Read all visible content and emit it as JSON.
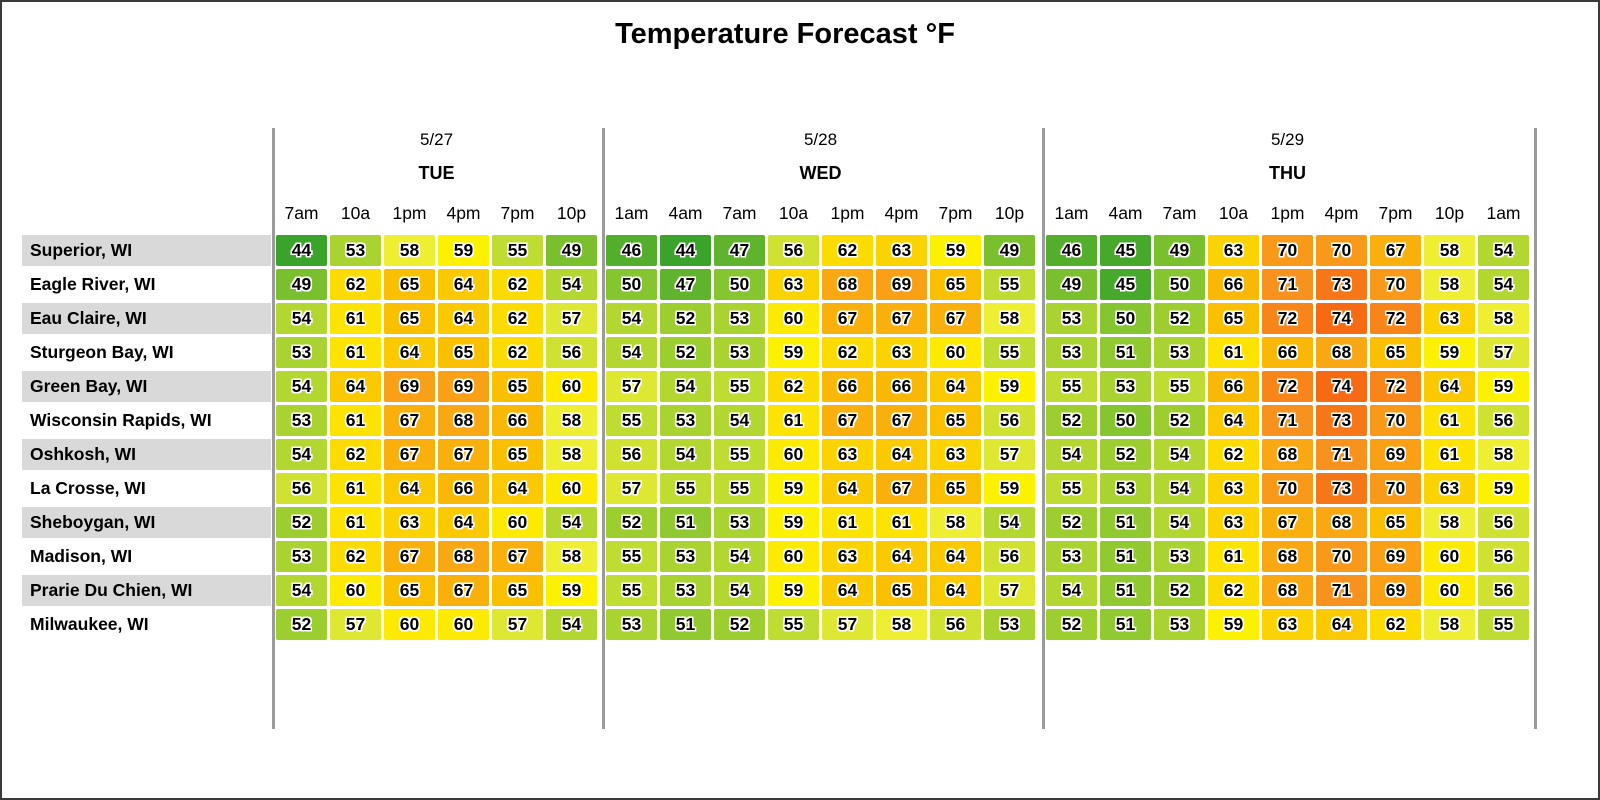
{
  "page": {
    "title": "Temperature Forecast °F"
  },
  "chart_data": {
    "type": "heatmap",
    "title": "Temperature Forecast °F",
    "unit": "°F",
    "value_range": [
      44,
      74
    ],
    "legend": "none",
    "grid": "off",
    "day_groups": [
      {
        "date": "5/27",
        "day": "TUE",
        "times": [
          "7am",
          "10a",
          "1pm",
          "4pm",
          "7pm",
          "10p"
        ]
      },
      {
        "date": "5/28",
        "day": "WED",
        "times": [
          "1am",
          "4am",
          "7am",
          "10a",
          "1pm",
          "4pm",
          "7pm",
          "10p"
        ]
      },
      {
        "date": "5/29",
        "day": "THU",
        "times": [
          "1am",
          "4am",
          "7am",
          "10a",
          "1pm",
          "4pm",
          "7pm",
          "10p",
          "1am"
        ]
      }
    ],
    "rows": [
      {
        "city": "Superior, WI",
        "values": [
          [
            44,
            53,
            58,
            59,
            55,
            49
          ],
          [
            46,
            44,
            47,
            56,
            62,
            63,
            59,
            49
          ],
          [
            46,
            45,
            49,
            63,
            70,
            70,
            67,
            58,
            54
          ]
        ]
      },
      {
        "city": "Eagle River, WI",
        "values": [
          [
            49,
            62,
            65,
            64,
            62,
            54
          ],
          [
            50,
            47,
            50,
            63,
            68,
            69,
            65,
            55
          ],
          [
            49,
            45,
            50,
            66,
            71,
            73,
            70,
            58,
            54
          ]
        ]
      },
      {
        "city": "Eau Claire, WI",
        "values": [
          [
            54,
            61,
            65,
            64,
            62,
            57
          ],
          [
            54,
            52,
            53,
            60,
            67,
            67,
            67,
            58
          ],
          [
            53,
            50,
            52,
            65,
            72,
            74,
            72,
            63,
            58
          ]
        ]
      },
      {
        "city": "Sturgeon Bay, WI",
        "values": [
          [
            53,
            61,
            64,
            65,
            62,
            56
          ],
          [
            54,
            52,
            53,
            59,
            62,
            63,
            60,
            55
          ],
          [
            53,
            51,
            53,
            61,
            66,
            68,
            65,
            59,
            57
          ]
        ]
      },
      {
        "city": "Green Bay, WI",
        "values": [
          [
            54,
            64,
            69,
            69,
            65,
            60
          ],
          [
            57,
            54,
            55,
            62,
            66,
            66,
            64,
            59
          ],
          [
            55,
            53,
            55,
            66,
            72,
            74,
            72,
            64,
            59
          ]
        ]
      },
      {
        "city": "Wisconsin Rapids, WI",
        "values": [
          [
            53,
            61,
            67,
            68,
            66,
            58
          ],
          [
            55,
            53,
            54,
            61,
            67,
            67,
            65,
            56
          ],
          [
            52,
            50,
            52,
            64,
            71,
            73,
            70,
            61,
            56
          ]
        ]
      },
      {
        "city": "Oshkosh, WI",
        "values": [
          [
            54,
            62,
            67,
            67,
            65,
            58
          ],
          [
            56,
            54,
            55,
            60,
            63,
            64,
            63,
            57
          ],
          [
            54,
            52,
            54,
            62,
            68,
            71,
            69,
            61,
            58
          ]
        ]
      },
      {
        "city": "La Crosse, WI",
        "values": [
          [
            56,
            61,
            64,
            66,
            64,
            60
          ],
          [
            57,
            55,
            55,
            59,
            64,
            67,
            65,
            59
          ],
          [
            55,
            53,
            54,
            63,
            70,
            73,
            70,
            63,
            59
          ]
        ]
      },
      {
        "city": "Sheboygan, WI",
        "values": [
          [
            52,
            61,
            63,
            64,
            60,
            54
          ],
          [
            52,
            51,
            53,
            59,
            61,
            61,
            58,
            54
          ],
          [
            52,
            51,
            54,
            63,
            67,
            68,
            65,
            58,
            56
          ]
        ]
      },
      {
        "city": "Madison, WI",
        "values": [
          [
            53,
            62,
            67,
            68,
            67,
            58
          ],
          [
            55,
            53,
            54,
            60,
            63,
            64,
            64,
            56
          ],
          [
            53,
            51,
            53,
            61,
            68,
            70,
            69,
            60,
            56
          ]
        ]
      },
      {
        "city": "Prarie Du Chien, WI",
        "values": [
          [
            54,
            60,
            65,
            67,
            65,
            59
          ],
          [
            55,
            53,
            54,
            59,
            64,
            65,
            64,
            57
          ],
          [
            54,
            51,
            52,
            62,
            68,
            71,
            69,
            60,
            56
          ]
        ]
      },
      {
        "city": "Milwaukee, WI",
        "values": [
          [
            52,
            57,
            60,
            60,
            57,
            54
          ],
          [
            53,
            51,
            52,
            55,
            57,
            58,
            56,
            53
          ],
          [
            52,
            51,
            53,
            59,
            63,
            64,
            62,
            58,
            55
          ]
        ]
      }
    ],
    "color_scale": {
      "stops": [
        [
          44,
          "#3aa32a"
        ],
        [
          50,
          "#85c52f"
        ],
        [
          55,
          "#bfdc32"
        ],
        [
          58,
          "#eeee33"
        ],
        [
          59,
          "#fcf200"
        ],
        [
          62,
          "#fcdc00"
        ],
        [
          65,
          "#fac000"
        ],
        [
          68,
          "#f9a712"
        ],
        [
          71,
          "#f8921e"
        ],
        [
          74,
          "#f56a13"
        ]
      ],
      "row_band_color": "#d9d9d9",
      "separator_color": "#9b9b9b"
    }
  }
}
